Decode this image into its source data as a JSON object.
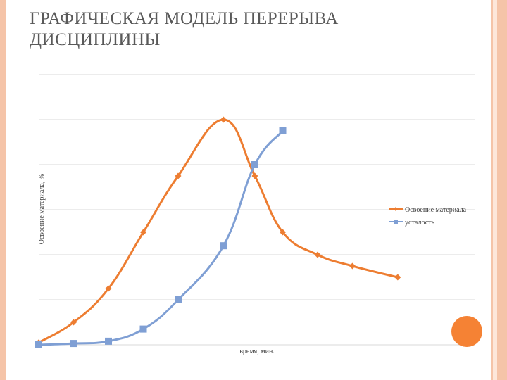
{
  "slide": {
    "title_line1": "ГРАФИЧЕСКАЯ МОДЕЛЬ ПЕРЕРЫВА",
    "title_line2": "ДИСЦИПЛИНЫ",
    "frame_color": "#f5c4a8",
    "accent_color": "#f58234"
  },
  "chart_data": {
    "type": "line",
    "title": "",
    "xlabel": "время, мин.",
    "ylabel": "Освоение материала, %",
    "grid": true,
    "ylim": [
      0,
      6
    ],
    "legend_position": "right",
    "series": [
      {
        "name": "Освоение материала",
        "color": "#ed7d31",
        "marker": "diamond",
        "x": [
          0,
          1,
          2,
          3,
          4,
          5.3,
          6.2,
          7,
          8,
          9,
          10.3
        ],
        "values": [
          0.05,
          0.5,
          1.25,
          2.5,
          3.75,
          5.0,
          3.75,
          2.5,
          2.0,
          1.75,
          1.5
        ]
      },
      {
        "name": "усталость",
        "color": "#7f9fd4",
        "marker": "square",
        "x": [
          0,
          1,
          2,
          3,
          4,
          5.3,
          6.2,
          7
        ],
        "values": [
          0.0,
          0.03,
          0.08,
          0.35,
          1.0,
          2.2,
          4.0,
          4.75
        ]
      }
    ]
  }
}
